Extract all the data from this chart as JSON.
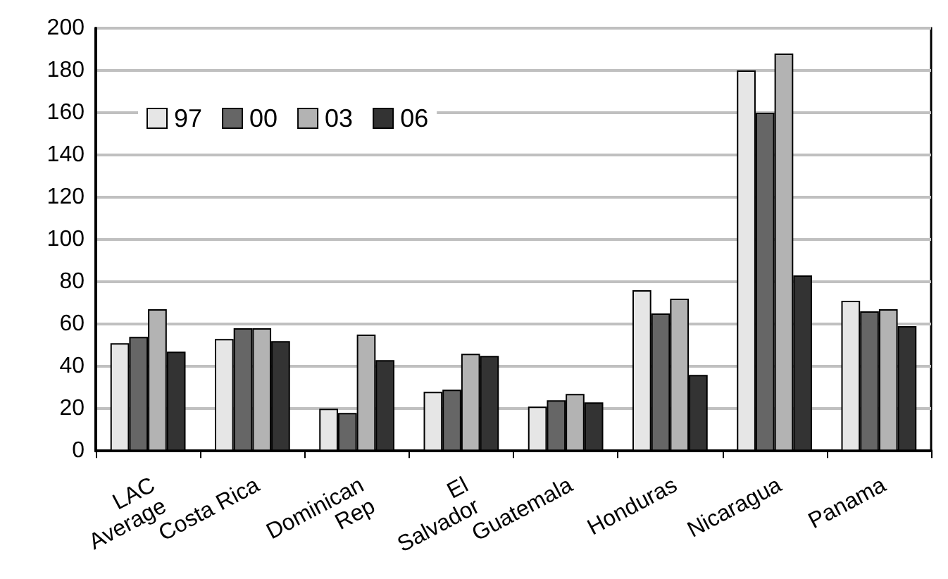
{
  "chart_data": {
    "type": "bar",
    "categories": [
      "LAC\nAverage",
      "Costa Rica",
      "Dominican\nRep",
      "El\nSalvador",
      "Guatemala",
      "Honduras",
      "Nicaragua",
      "Panama"
    ],
    "series": [
      {
        "name": "97",
        "color": "#e6e6e6",
        "values": [
          51,
          53,
          20,
          28,
          21,
          76,
          180,
          71
        ]
      },
      {
        "name": "00",
        "color": "#666666",
        "values": [
          54,
          58,
          18,
          29,
          24,
          65,
          160,
          66
        ]
      },
      {
        "name": "03",
        "color": "#b3b3b3",
        "values": [
          67,
          58,
          55,
          46,
          27,
          72,
          188,
          67
        ]
      },
      {
        "name": "06",
        "color": "#333333",
        "values": [
          47,
          52,
          43,
          45,
          23,
          36,
          83,
          59
        ]
      }
    ],
    "ylim": [
      0,
      200
    ],
    "yticks": [
      0,
      20,
      40,
      60,
      80,
      100,
      120,
      140,
      160,
      180,
      200
    ],
    "grid": "y",
    "legend": "top left"
  }
}
